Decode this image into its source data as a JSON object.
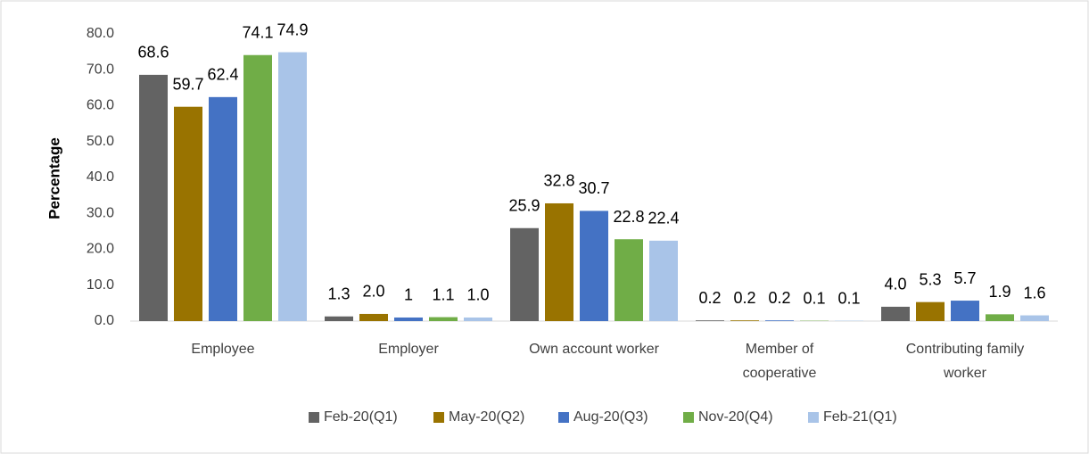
{
  "chart_data": {
    "type": "bar",
    "y_label": "Percentage",
    "categories": [
      "Employee",
      "Employer",
      "Own account worker",
      "Member of cooperative",
      "Contributing family worker"
    ],
    "series": [
      {
        "name": "Feb-20(Q1)",
        "color": "#636363",
        "values": [
          68.6,
          1.3,
          25.9,
          0.2,
          4.0
        ],
        "value_labels": [
          "68.6",
          "1.3",
          "25.9",
          "0.2",
          "4.0"
        ]
      },
      {
        "name": "May-20(Q2)",
        "color": "#997300",
        "values": [
          59.7,
          2.0,
          32.8,
          0.2,
          5.3
        ],
        "value_labels": [
          "59.7",
          "2.0",
          "32.8",
          "0.2",
          "5.3"
        ]
      },
      {
        "name": "Aug-20(Q3)",
        "color": "#4472c4",
        "values": [
          62.4,
          1,
          30.7,
          0.2,
          5.7
        ],
        "value_labels": [
          "62.4",
          "1",
          "30.7",
          "0.2",
          "5.7"
        ]
      },
      {
        "name": "Nov-20(Q4)",
        "color": "#70ad47",
        "values": [
          74.1,
          1.1,
          22.8,
          0.1,
          1.9
        ],
        "value_labels": [
          "74.1",
          "1.1",
          "22.8",
          "0.1",
          "1.9"
        ]
      },
      {
        "name": "Feb-21(Q1)",
        "color": "#a9c4e8",
        "values": [
          74.9,
          1.0,
          22.4,
          0.1,
          1.6
        ],
        "value_labels": [
          "74.9",
          "1.0",
          "22.4",
          "0.1",
          "1.6"
        ]
      }
    ],
    "ylim": [
      0,
      80
    ],
    "yticks": [
      {
        "value": 0,
        "label": "0.0"
      },
      {
        "value": 10,
        "label": "10.0"
      },
      {
        "value": 20,
        "label": "20.0"
      },
      {
        "value": 30,
        "label": "30.0"
      },
      {
        "value": 40,
        "label": "40.0"
      },
      {
        "value": 50,
        "label": "50.0"
      },
      {
        "value": 60,
        "label": "60.0"
      },
      {
        "value": 70,
        "label": "70.0"
      },
      {
        "value": 80,
        "label": "80.0"
      }
    ],
    "grid": false,
    "legend": "bottom"
  }
}
